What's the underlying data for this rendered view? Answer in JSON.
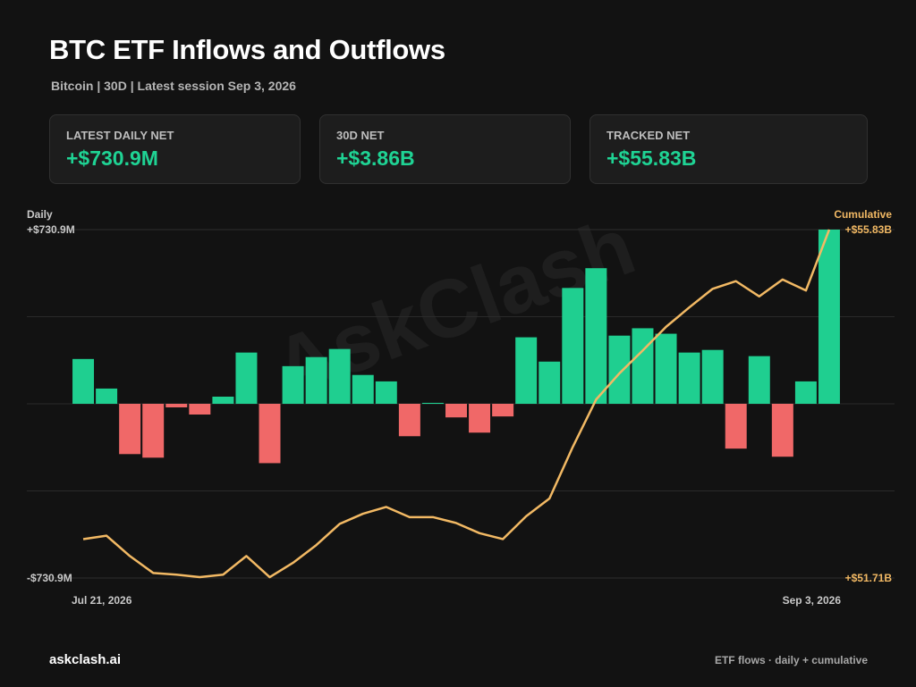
{
  "header": {
    "title": "BTC ETF Inflows and Outflows",
    "subtitle": "Bitcoin | 30D | Latest session Sep 3, 2026"
  },
  "cards": [
    {
      "label": "LATEST DAILY NET",
      "value": "+$730.9M"
    },
    {
      "label": "30D NET",
      "value": "+$3.86B"
    },
    {
      "label": "TRACKED NET",
      "value": "+$55.83B"
    }
  ],
  "chart_data": {
    "type": "combo",
    "watermark": "AskClash",
    "categories": [
      "Jul 21, 2026",
      null,
      null,
      null,
      null,
      null,
      null,
      null,
      null,
      null,
      null,
      null,
      null,
      null,
      null,
      null,
      null,
      null,
      null,
      null,
      null,
      null,
      null,
      null,
      null,
      null,
      null,
      null,
      null,
      null,
      null,
      null,
      "Sep 3, 2026"
    ],
    "series": [
      {
        "name": "Daily",
        "type": "bar",
        "color": "#1fcf90",
        "negative_color": "#f06868",
        "values": [
          188,
          64,
          -211,
          -226,
          -15,
          -45,
          30,
          215,
          -249,
          158,
          196,
          230,
          121,
          94,
          -136,
          4,
          -57,
          -121,
          -53,
          279,
          177,
          486,
          569,
          286,
          317,
          294,
          215,
          226,
          -188,
          200,
          -222,
          94,
          730.9
        ]
      },
      {
        "name": "Cumulative",
        "type": "line",
        "axis": "y2",
        "color": "#f2b964",
        "values": [
          52.17,
          52.21,
          51.97,
          51.77,
          51.75,
          51.72,
          51.75,
          51.97,
          51.72,
          51.89,
          52.1,
          52.35,
          52.47,
          52.55,
          52.43,
          52.43,
          52.36,
          52.24,
          52.17,
          52.44,
          52.65,
          53.26,
          53.82,
          54.13,
          54.4,
          54.68,
          54.91,
          55.13,
          55.22,
          55.04,
          55.24,
          55.11,
          55.83
        ]
      }
    ],
    "ylim": [
      -730.9,
      730.9
    ],
    "yticks": [
      {
        "value": 730.9,
        "label": "+$730.9M"
      },
      {
        "value": -730.9,
        "label": "-$730.9M"
      }
    ],
    "y2lim": [
      51.71,
      55.83
    ],
    "y2ticks": [
      {
        "value": 55.83,
        "label": "+$55.83B"
      },
      {
        "value": 51.71,
        "label": "+$51.71B"
      }
    ],
    "grid": true
  },
  "footer": {
    "left": "askclash.ai",
    "right": "ETF flows · daily + cumulative"
  }
}
